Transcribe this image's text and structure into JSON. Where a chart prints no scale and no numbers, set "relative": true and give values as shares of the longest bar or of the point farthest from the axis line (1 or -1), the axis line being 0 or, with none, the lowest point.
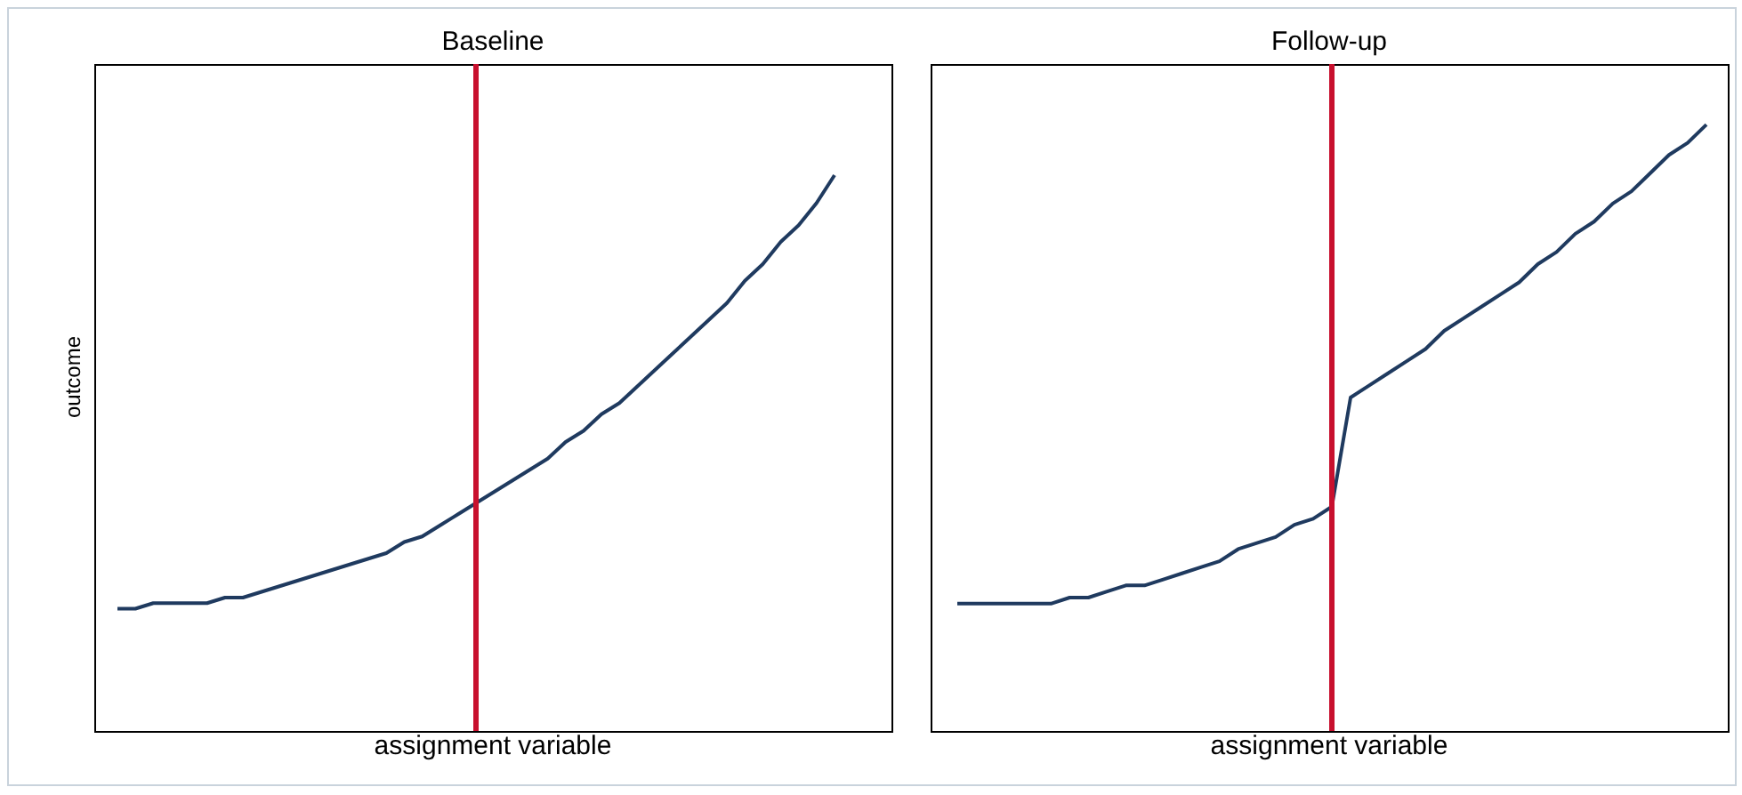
{
  "chart_data": [
    {
      "type": "line",
      "title": "Baseline",
      "xlabel": "assignment variable",
      "ylabel": "outcome",
      "relative": true,
      "tick_labels": false,
      "legend": false,
      "marker": "none",
      "line_style": "solid",
      "categories": [
        null,
        null,
        null,
        null,
        null,
        null,
        null,
        null,
        null,
        null,
        null,
        null,
        null,
        null,
        null,
        null,
        null,
        null,
        null,
        null,
        null,
        null,
        null,
        null,
        null,
        null,
        null,
        null,
        null,
        null,
        null,
        null,
        null,
        null,
        null,
        null,
        null,
        null,
        null,
        null,
        null
      ],
      "series": [
        {
          "color": "#1f3a5f",
          "values": [
            0.22,
            0.22,
            0.23,
            0.23,
            0.23,
            0.23,
            0.24,
            0.24,
            0.25,
            0.26,
            0.27,
            0.28,
            0.29,
            0.3,
            0.31,
            0.32,
            0.34,
            0.35,
            0.37,
            0.39,
            0.41,
            0.43,
            0.45,
            0.47,
            0.49,
            0.52,
            0.54,
            0.57,
            0.59,
            0.62,
            0.65,
            0.68,
            0.71,
            0.74,
            0.77,
            0.81,
            0.84,
            0.88,
            0.91,
            0.95,
            1
          ]
        }
      ]
    },
    {
      "type": "line",
      "title": "Follow-up",
      "xlabel": "assignment variable",
      "relative": true,
      "tick_labels": false,
      "legend": false,
      "marker": "none",
      "line_style": "solid",
      "categories": [
        null,
        null,
        null,
        null,
        null,
        null,
        null,
        null,
        null,
        null,
        null,
        null,
        null,
        null,
        null,
        null,
        null,
        null,
        null,
        null,
        null,
        null,
        null,
        null,
        null,
        null,
        null,
        null,
        null,
        null,
        null,
        null,
        null,
        null,
        null,
        null,
        null,
        null,
        null,
        null,
        null
      ],
      "series": [
        {
          "color": "#1f3a5f",
          "values": [
            0.21,
            0.21,
            0.21,
            0.21,
            0.21,
            0.21,
            0.22,
            0.22,
            0.23,
            0.24,
            0.24,
            0.25,
            0.26,
            0.27,
            0.28,
            0.3,
            0.31,
            0.32,
            0.34,
            0.35,
            0.37,
            0.55,
            0.57,
            0.59,
            0.61,
            0.63,
            0.66,
            0.68,
            0.7,
            0.72,
            0.74,
            0.77,
            0.79,
            0.82,
            0.84,
            0.87,
            0.89,
            0.92,
            0.95,
            0.97,
            1
          ]
        }
      ]
    }
  ]
}
